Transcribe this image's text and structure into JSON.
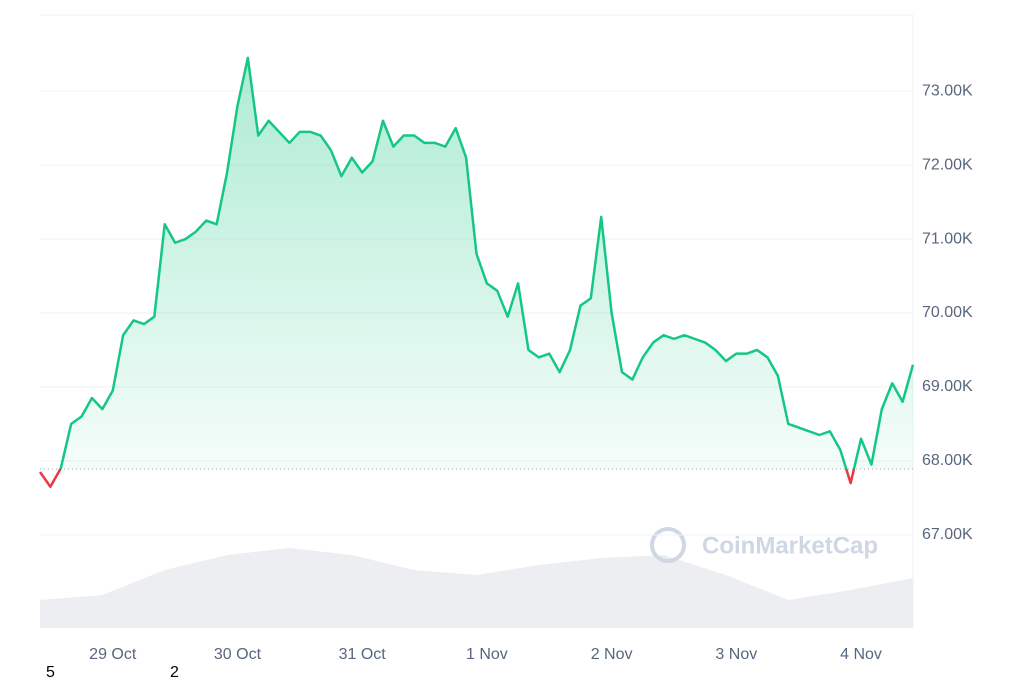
{
  "chart_data": {
    "type": "line",
    "categories": [
      null,
      null,
      null,
      null,
      null,
      null,
      null,
      "29 Oct",
      null,
      null,
      null,
      null,
      null,
      null,
      null,
      null,
      null,
      null,
      null,
      "30 Oct",
      null,
      null,
      null,
      null,
      null,
      null,
      null,
      null,
      null,
      null,
      null,
      "31 Oct",
      null,
      null,
      null,
      null,
      null,
      null,
      null,
      null,
      null,
      null,
      null,
      "1 Nov",
      null,
      null,
      null,
      null,
      null,
      null,
      null,
      null,
      null,
      null,
      null,
      "2 Nov",
      null,
      null,
      null,
      null,
      null,
      null,
      null,
      null,
      null,
      null,
      null,
      "3 Nov",
      null,
      null,
      null,
      null,
      null,
      null,
      null,
      null,
      null,
      null,
      null,
      "4 Nov",
      null,
      null,
      null,
      null,
      null
    ],
    "values": [
      67850,
      67650,
      67900,
      68500,
      68600,
      68850,
      68700,
      68950,
      69700,
      69900,
      69850,
      69950,
      71200,
      70950,
      71000,
      71100,
      71250,
      71200,
      71900,
      72800,
      73450,
      72400,
      72600,
      72450,
      72300,
      72450,
      72450,
      72400,
      72200,
      71850,
      72100,
      71900,
      72050,
      72600,
      72250,
      72400,
      72400,
      72300,
      72300,
      72250,
      72500,
      72100,
      70800,
      70400,
      70300,
      69950,
      70400,
      69500,
      69400,
      69450,
      69200,
      69500,
      70100,
      70200,
      71300,
      70000,
      69200,
      69100,
      69400,
      69600,
      69700,
      69650,
      69700,
      69650,
      69600,
      69500,
      69350,
      69450,
      69450,
      69500,
      69400,
      69150,
      68500,
      68450,
      68400,
      68350,
      68400,
      68150,
      67700,
      68300,
      67950,
      68700,
      69050,
      68800,
      69300
    ],
    "color": "#16c784",
    "down_color": "#ea3943",
    "baseline": 67890,
    "ylim": [
      65740,
      74030
    ],
    "yticks": [
      {
        "value": 67000,
        "label": "67.00K"
      },
      {
        "value": 68000,
        "label": "68.00K"
      },
      {
        "value": 69000,
        "label": "69.00K"
      },
      {
        "value": 70000,
        "label": "70.00K"
      },
      {
        "value": 71000,
        "label": "71.00K"
      },
      {
        "value": 72000,
        "label": "72.00K"
      },
      {
        "value": 73000,
        "label": "73.00K"
      }
    ],
    "grid": true,
    "volume": {
      "values": [
        28,
        33,
        58,
        73,
        80,
        73,
        58,
        53,
        63,
        70,
        73,
        53,
        28,
        38,
        50
      ],
      "ylim": [
        0,
        100
      ],
      "color": "#eceef1"
    },
    "watermark": "CoinMarketCap",
    "footer_fragments": [
      "5",
      "2"
    ]
  }
}
